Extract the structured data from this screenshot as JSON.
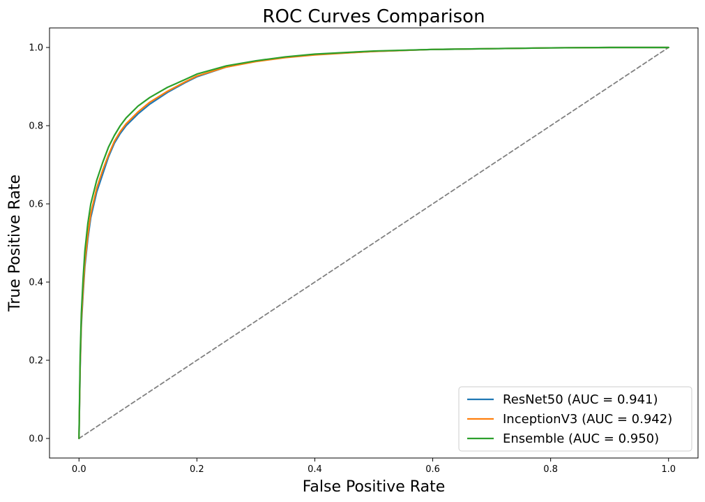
{
  "chart_data": {
    "type": "line",
    "title": "ROC Curves Comparison",
    "xlabel": "False Positive Rate",
    "ylabel": "True Positive Rate",
    "xlim": [
      -0.05,
      1.05
    ],
    "ylim": [
      -0.05,
      1.05
    ],
    "xticks": [
      "0.0",
      "0.2",
      "0.4",
      "0.6",
      "0.8",
      "1.0"
    ],
    "yticks": [
      "0.0",
      "0.2",
      "0.4",
      "0.6",
      "0.8",
      "1.0"
    ],
    "grid": false,
    "legend_position": "lower-right",
    "series": [
      {
        "name": "ResNet50 (AUC = 0.941)",
        "color": "#1f77b4",
        "x": [
          0,
          0.002,
          0.004,
          0.007,
          0.01,
          0.015,
          0.02,
          0.03,
          0.04,
          0.05,
          0.06,
          0.07,
          0.08,
          0.1,
          0.12,
          0.15,
          0.18,
          0.2,
          0.25,
          0.3,
          0.35,
          0.4,
          0.5,
          0.6,
          0.7,
          0.8,
          0.9,
          1.0
        ],
        "y": [
          0,
          0.18,
          0.29,
          0.37,
          0.44,
          0.51,
          0.565,
          0.63,
          0.675,
          0.72,
          0.755,
          0.78,
          0.8,
          0.83,
          0.855,
          0.885,
          0.91,
          0.925,
          0.95,
          0.965,
          0.975,
          0.982,
          0.99,
          0.995,
          0.997,
          0.999,
          1.0,
          1.0
        ]
      },
      {
        "name": "InceptionV3 (AUC = 0.942)",
        "color": "#ff7f0e",
        "x": [
          0,
          0.002,
          0.004,
          0.007,
          0.01,
          0.015,
          0.02,
          0.03,
          0.04,
          0.05,
          0.06,
          0.07,
          0.08,
          0.1,
          0.12,
          0.15,
          0.18,
          0.2,
          0.25,
          0.3,
          0.35,
          0.4,
          0.5,
          0.6,
          0.7,
          0.8,
          0.9,
          1.0
        ],
        "y": [
          0,
          0.19,
          0.3,
          0.38,
          0.45,
          0.52,
          0.575,
          0.64,
          0.685,
          0.725,
          0.76,
          0.785,
          0.805,
          0.835,
          0.86,
          0.888,
          0.912,
          0.927,
          0.95,
          0.964,
          0.974,
          0.981,
          0.99,
          0.995,
          0.997,
          0.999,
          1.0,
          1.0
        ]
      },
      {
        "name": "Ensemble (AUC = 0.950)",
        "color": "#2ca02c",
        "x": [
          0,
          0.002,
          0.004,
          0.007,
          0.01,
          0.015,
          0.02,
          0.03,
          0.04,
          0.05,
          0.06,
          0.07,
          0.08,
          0.1,
          0.12,
          0.15,
          0.18,
          0.2,
          0.25,
          0.3,
          0.35,
          0.4,
          0.5,
          0.6,
          0.7,
          0.8,
          0.9,
          1.0
        ],
        "y": [
          0,
          0.21,
          0.32,
          0.41,
          0.48,
          0.55,
          0.6,
          0.66,
          0.705,
          0.745,
          0.775,
          0.8,
          0.82,
          0.85,
          0.872,
          0.898,
          0.918,
          0.932,
          0.953,
          0.966,
          0.976,
          0.983,
          0.991,
          0.995,
          0.997,
          0.999,
          1.0,
          1.0
        ]
      },
      {
        "name": "",
        "color": "#808080",
        "dashed": true,
        "x": [
          0,
          1
        ],
        "y": [
          0,
          1
        ]
      }
    ]
  }
}
